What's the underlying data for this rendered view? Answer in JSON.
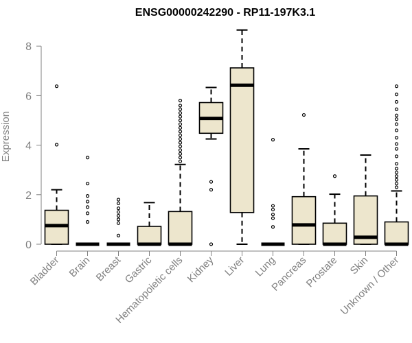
{
  "chart_data": {
    "type": "boxplot",
    "title": "ENSG00000242290 - RP11-197K3.1",
    "xlabel": "",
    "ylabel": "Expression",
    "ylim": [
      0,
      8.7
    ],
    "yticks": [
      0,
      2,
      4,
      6,
      8
    ],
    "grid": false,
    "legend": "none",
    "colors": {
      "box_fill": "#ede6cd",
      "box_stroke": "#000000",
      "axis": "#808080",
      "text": "#808080"
    },
    "categories": [
      "Bladder",
      "Brain",
      "Breast",
      "Gastric",
      "Hematopoietic cells",
      "Kidney",
      "Liver",
      "Lung",
      "Pancreas",
      "Prostate",
      "Skin",
      "Unknown / Other"
    ],
    "boxes": [
      {
        "whisker_low": 0,
        "q1": 0,
        "median": 0.75,
        "q3": 1.37,
        "whisker_high": 2.2,
        "outliers": [
          4.02,
          6.38
        ]
      },
      {
        "whisker_low": 0,
        "q1": 0,
        "median": 0,
        "q3": 0,
        "whisker_high": 0,
        "outliers": [
          0.9,
          1.25,
          1.5,
          1.72,
          1.95,
          2.45,
          3.5
        ]
      },
      {
        "whisker_low": 0,
        "q1": 0,
        "median": 0,
        "q3": 0,
        "whisker_high": 0,
        "outliers": [
          0.35,
          0.85,
          1.0,
          1.15,
          1.3,
          1.45,
          1.65,
          1.8
        ]
      },
      {
        "whisker_low": 0,
        "q1": 0,
        "median": 0,
        "q3": 0.72,
        "whisker_high": 1.68,
        "outliers": []
      },
      {
        "whisker_low": 0,
        "q1": 0,
        "median": 0,
        "q3": 1.32,
        "whisker_high": 3.22,
        "outliers": [
          3.35,
          3.5,
          3.65,
          3.8,
          3.95,
          4.1,
          4.25,
          4.4,
          4.55,
          4.7,
          4.85,
          5.0,
          5.15,
          5.3,
          5.45,
          5.6,
          5.8
        ]
      },
      {
        "whisker_low": 4.25,
        "q1": 4.48,
        "median": 5.08,
        "q3": 5.72,
        "whisker_high": 6.33,
        "outliers": [
          0,
          2.2,
          2.52
        ]
      },
      {
        "whisker_low": 0,
        "q1": 1.28,
        "median": 6.42,
        "q3": 7.12,
        "whisker_high": 8.65,
        "outliers": []
      },
      {
        "whisker_low": 0,
        "q1": 0,
        "median": 0,
        "q3": 0,
        "whisker_high": 0,
        "outliers": [
          0.7,
          1.05,
          1.2,
          1.4,
          1.55,
          4.22
        ]
      },
      {
        "whisker_low": 0,
        "q1": 0,
        "median": 0.78,
        "q3": 1.92,
        "whisker_high": 3.85,
        "outliers": [
          5.22
        ]
      },
      {
        "whisker_low": 0,
        "q1": 0,
        "median": 0,
        "q3": 0.85,
        "whisker_high": 2.02,
        "outliers": [
          2.75
        ]
      },
      {
        "whisker_low": 0,
        "q1": 0,
        "median": 0.28,
        "q3": 1.95,
        "whisker_high": 3.6,
        "outliers": []
      },
      {
        "whisker_low": 0,
        "q1": 0,
        "median": 0,
        "q3": 0.9,
        "whisker_high": 2.15,
        "outliers": [
          2.3,
          2.45,
          2.6,
          2.75,
          2.9,
          3.05,
          3.25,
          3.55,
          3.85,
          4.05,
          4.3,
          4.6,
          4.85,
          5.05,
          5.2,
          5.45,
          5.75,
          6.05,
          6.38
        ]
      }
    ]
  }
}
